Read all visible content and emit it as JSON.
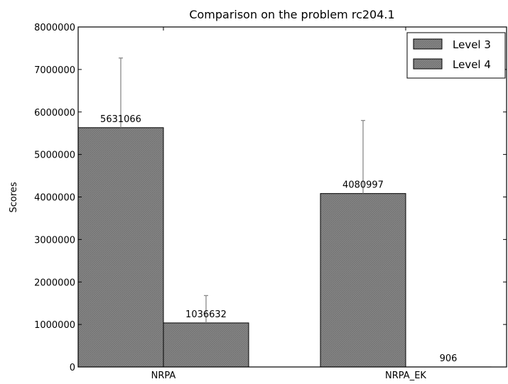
{
  "chart_data": {
    "type": "bar",
    "title": "Comparison on the problem rc204.1",
    "xlabel": "",
    "ylabel": "Scores",
    "ylim": [
      0,
      8000000
    ],
    "yticks": [
      "0",
      "1000000",
      "2000000",
      "3000000",
      "4000000",
      "5000000",
      "6000000",
      "7000000",
      "8000000"
    ],
    "categories": [
      "NRPA",
      "NRPA_EK"
    ],
    "series": [
      {
        "name": "Level 3",
        "values": [
          5631066,
          4080997
        ],
        "error_upper": [
          7270000,
          5800000
        ],
        "labels": [
          "5631066",
          "4080997"
        ]
      },
      {
        "name": "Level 4",
        "values": [
          1036632,
          906
        ],
        "error_upper": [
          1680000,
          null
        ],
        "labels": [
          "1036632",
          "906"
        ]
      }
    ],
    "legend_position": "top-right",
    "grid": false,
    "colors": {
      "bar_fill": "#7f7f7f",
      "error_bar": "#8a8a8a"
    }
  }
}
